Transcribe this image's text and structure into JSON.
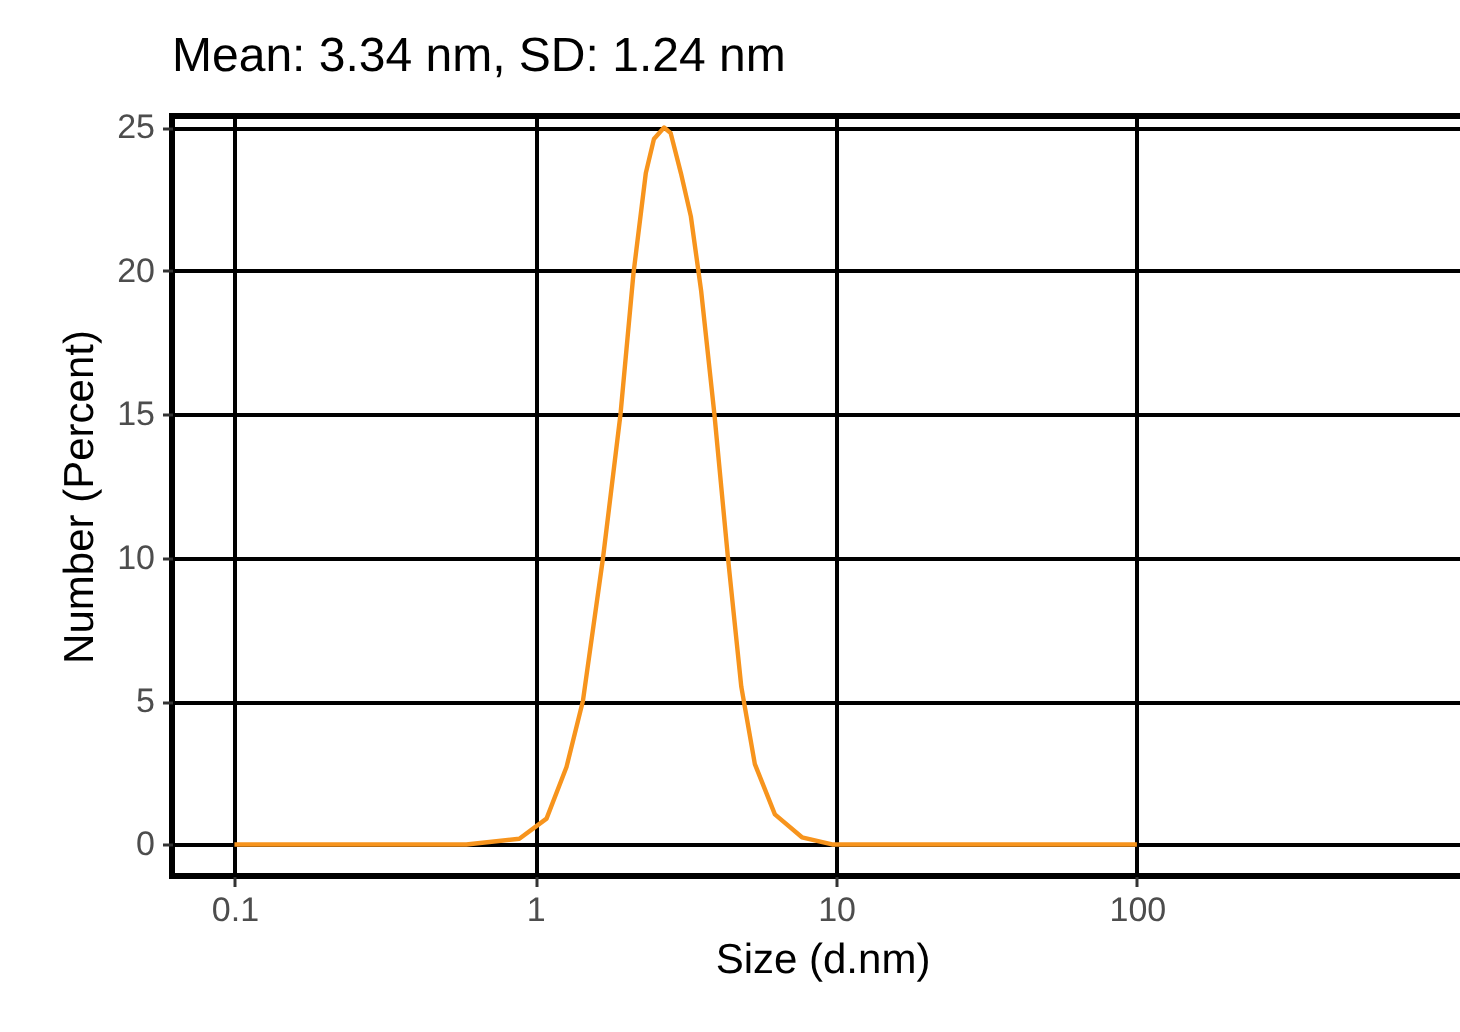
{
  "chart_data": {
    "type": "line",
    "title": "Mean: 3.34 nm, SD: 1.24 nm",
    "xlabel": "Size (d.nm)",
    "ylabel": "Number (Percent)",
    "log": "x",
    "grid": true,
    "marker": "none",
    "line_style": "solid",
    "xlim": [
      0.062,
      1300
    ],
    "xticks": [
      0.1,
      1,
      10,
      100
    ],
    "ylim": [
      -1.1,
      25.4
    ],
    "yticks": [
      0,
      5,
      10,
      15,
      20,
      25
    ],
    "series": [
      {
        "color": "#f7941d",
        "x": [
          0.1,
          0.3,
          0.59,
          0.885,
          1.09,
          1.27,
          1.44,
          1.68,
          1.92,
          2.12,
          2.33,
          2.48,
          2.68,
          2.82,
          3.05,
          3.29,
          3.56,
          3.94,
          4.37,
          4.84,
          5.37,
          6.26,
          7.7,
          9.7,
          20,
          50,
          100
        ],
        "values": [
          0,
          0,
          0,
          0.2,
          0.9,
          2.7,
          5.0,
          10.0,
          15.0,
          19.9,
          23.4,
          24.6,
          25.0,
          24.8,
          23.4,
          21.9,
          19.3,
          15.0,
          10.0,
          5.5,
          2.8,
          1.05,
          0.25,
          0,
          0,
          0,
          0
        ]
      }
    ]
  }
}
